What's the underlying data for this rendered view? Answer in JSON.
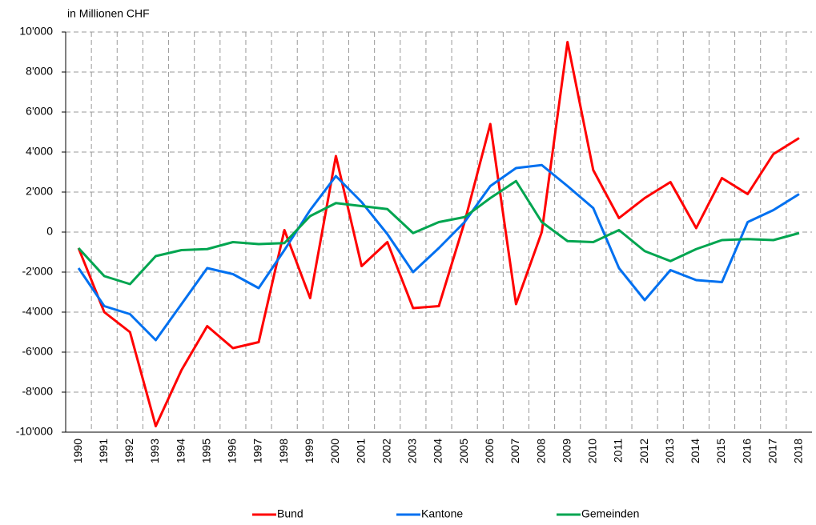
{
  "chart_data": {
    "type": "line",
    "y_label": "in Millionen CHF",
    "categories": [
      "1990",
      "1991",
      "1992",
      "1993",
      "1994",
      "1995",
      "1996",
      "1997",
      "1998",
      "1999",
      "2000",
      "2001",
      "2002",
      "2003",
      "2004",
      "2005",
      "2006",
      "2007",
      "2008",
      "2009",
      "2010",
      "2011",
      "2012",
      "2013",
      "2014",
      "2015",
      "2016",
      "2017",
      "2018"
    ],
    "series": [
      {
        "name": "Bund",
        "color": "#ff0000",
        "values": [
          -800,
          -4000,
          -5000,
          -9700,
          -6900,
          -4700,
          -5800,
          -5500,
          100,
          -3300,
          3800,
          -1700,
          -500,
          -3800,
          -3700,
          500,
          5400,
          -3600,
          0,
          9500,
          3100,
          700,
          1700,
          2500,
          200,
          2700,
          1900,
          3900,
          4700
        ]
      },
      {
        "name": "Kantone",
        "color": "#0070f0",
        "values": [
          -1800,
          -3700,
          -4100,
          -5400,
          -3600,
          -1800,
          -2100,
          -2800,
          -900,
          1100,
          2800,
          1500,
          -100,
          -2000,
          -800,
          500,
          2300,
          3200,
          3350,
          2300,
          1200,
          -1800,
          -3400,
          -1900,
          -2400,
          -2500,
          500,
          1100,
          1900
        ]
      },
      {
        "name": "Gemeinden",
        "color": "#00a550",
        "values": [
          -800,
          -2200,
          -2600,
          -1200,
          -900,
          -850,
          -500,
          -600,
          -550,
          800,
          1450,
          1300,
          1150,
          -50,
          500,
          750,
          1700,
          2550,
          500,
          -450,
          -500,
          100,
          -950,
          -1450,
          -850,
          -400,
          -350,
          -400,
          -50
        ]
      }
    ],
    "ylim": [
      -10000,
      10000
    ],
    "yticks": [
      {
        "value": -10000,
        "label": "-10'000"
      },
      {
        "value": -8000,
        "label": "-8'000"
      },
      {
        "value": -6000,
        "label": "-6'000"
      },
      {
        "value": -4000,
        "label": "-4'000"
      },
      {
        "value": -2000,
        "label": "-2'000"
      },
      0,
      {
        "value": 2000,
        "label": "2'000"
      },
      {
        "value": 4000,
        "label": "4'000"
      },
      {
        "value": 6000,
        "label": "6'000"
      },
      {
        "value": 8000,
        "label": "8'000"
      },
      {
        "value": 10000,
        "label": "10'000"
      }
    ],
    "grid": true,
    "legend": "bottom"
  }
}
